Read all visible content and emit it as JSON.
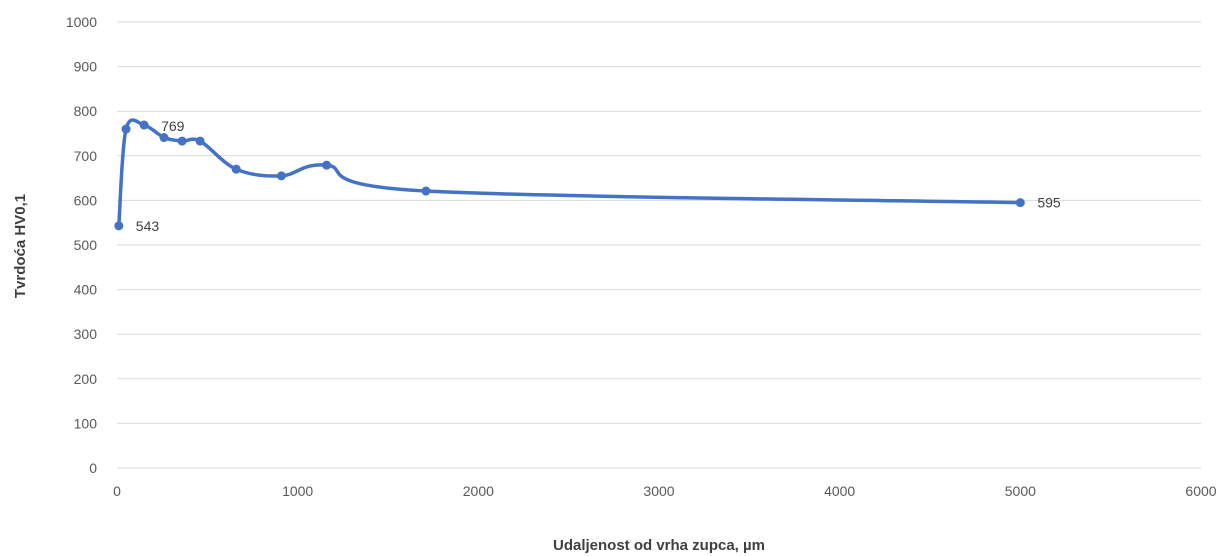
{
  "chart_data": {
    "type": "scatter",
    "title": "",
    "xlabel": "Udaljenost od vrha zupca, µm",
    "ylabel": "Tvrdoća HV0,1",
    "xlim": [
      0,
      6000
    ],
    "ylim": [
      0,
      1000
    ],
    "x_ticks": [
      0,
      1000,
      2000,
      3000,
      4000,
      5000,
      6000
    ],
    "y_ticks": [
      0,
      100,
      200,
      300,
      400,
      500,
      600,
      700,
      800,
      900,
      1000
    ],
    "grid": "horizontal",
    "legend": "none",
    "smooth_line": true,
    "markers": true,
    "series": [
      {
        "color": "#4472c4",
        "x": [
          10,
          50,
          150,
          260,
          360,
          460,
          660,
          910,
          1160,
          1710,
          5000
        ],
        "y": [
          543,
          760,
          769,
          741,
          733,
          733,
          670,
          655,
          679,
          621,
          595
        ]
      }
    ],
    "data_labels": [
      {
        "point_index": 0,
        "text": "543"
      },
      {
        "point_index": 2,
        "text": "769"
      },
      {
        "point_index": 10,
        "text": "595"
      }
    ]
  }
}
